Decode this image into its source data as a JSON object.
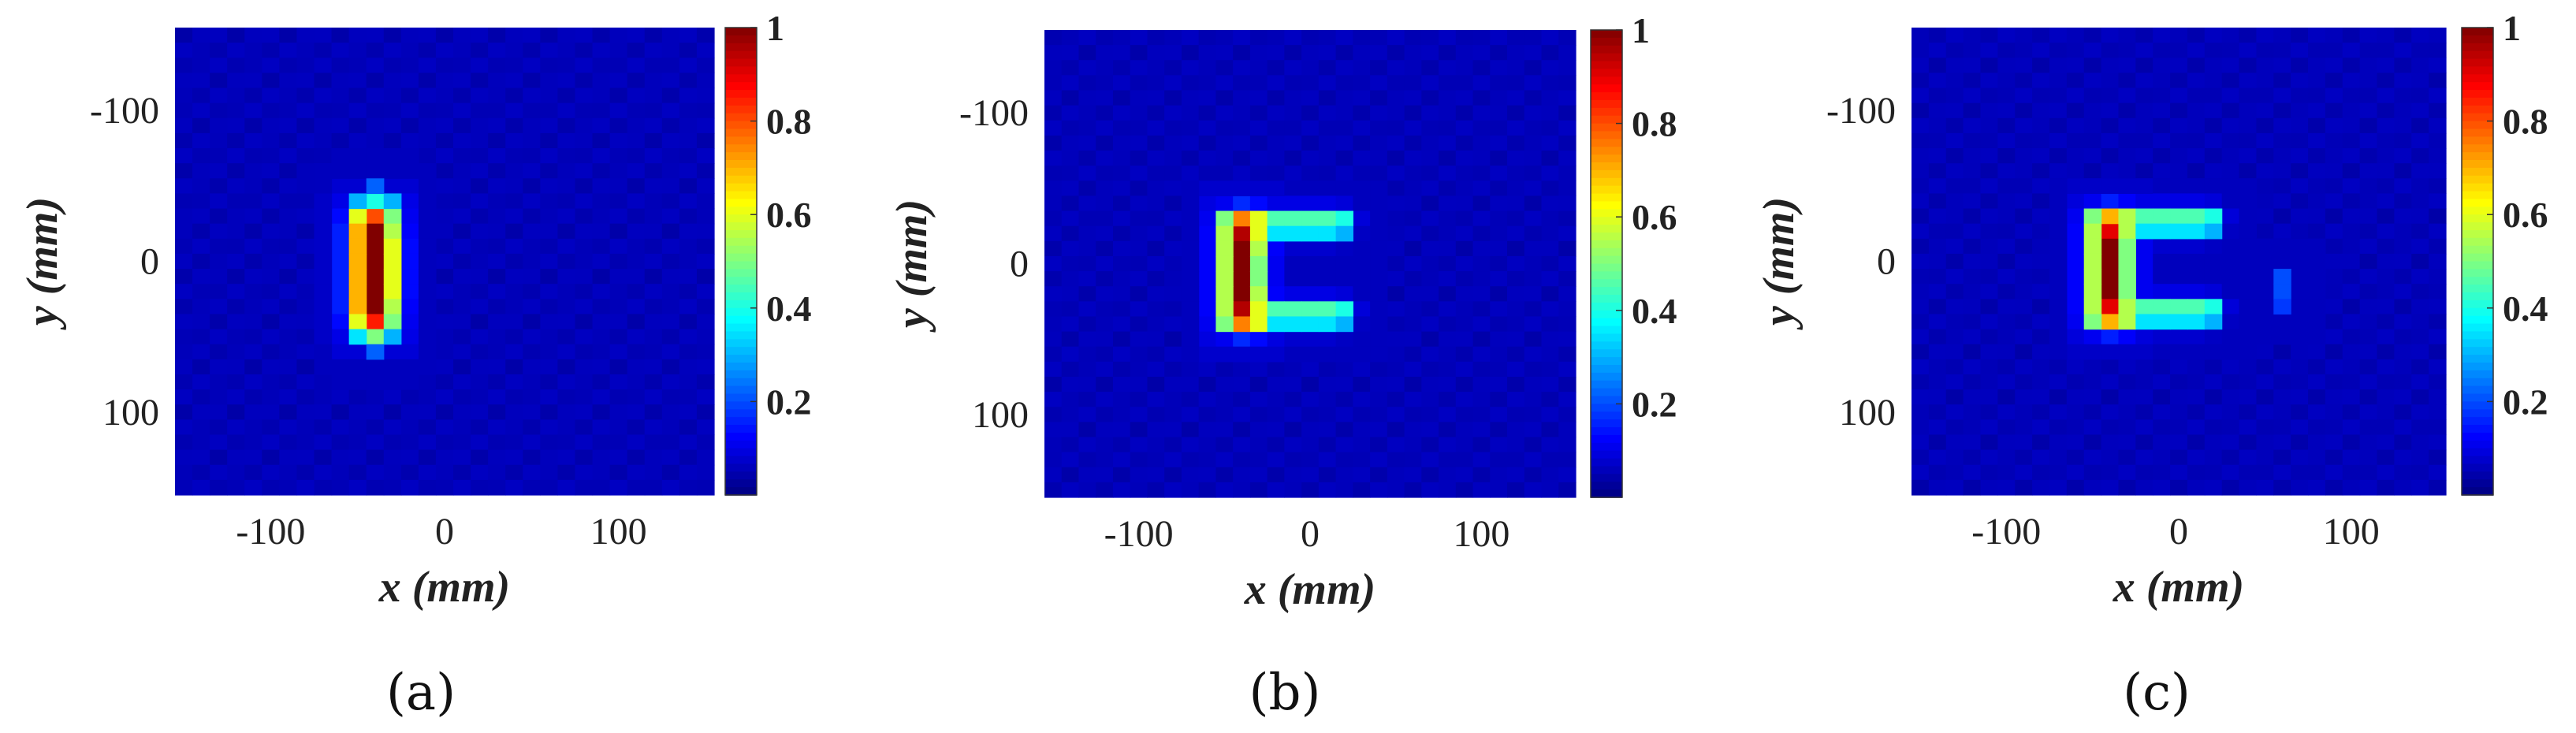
{
  "chart_data": [
    {
      "type": "heatmap",
      "panel_label": "(a)",
      "xlabel": "x (mm)",
      "ylabel": "y (mm)",
      "xlim": [
        -155,
        155
      ],
      "ylim": [
        -155,
        155
      ],
      "xticks": [
        "-100",
        "0",
        "100"
      ],
      "xtick_values": [
        -100,
        0,
        100
      ],
      "yticks": [
        "-100",
        "0",
        "100"
      ],
      "ytick_values": [
        -100,
        0,
        100
      ],
      "grid_size": [
        31,
        31
      ],
      "cell_mm": 10,
      "colormap": "jet",
      "colorbar": {
        "range": [
          0,
          1
        ],
        "ticks": [
          "0.2",
          "0.4",
          "0.6",
          "0.8",
          "1"
        ],
        "tick_values": [
          0.2,
          0.4,
          0.6,
          0.8,
          1
        ]
      },
      "shape": "vertical bar",
      "peak": 1.0,
      "bright_cells": [
        {
          "x": -40,
          "y": -30,
          "v": 0.8
        },
        {
          "x": -40,
          "y": -20,
          "v": 1.0
        },
        {
          "x": -40,
          "y": -10,
          "v": 1.0
        },
        {
          "x": -40,
          "y": 0,
          "v": 1.0
        },
        {
          "x": -40,
          "y": 10,
          "v": 1.0
        },
        {
          "x": -40,
          "y": 20,
          "v": 1.0
        },
        {
          "x": -40,
          "y": 30,
          "v": 1.0
        },
        {
          "x": -40,
          "y": 40,
          "v": 0.85
        },
        {
          "x": -50,
          "y": -30,
          "v": 0.6
        },
        {
          "x": -50,
          "y": -20,
          "v": 0.7
        },
        {
          "x": -50,
          "y": -10,
          "v": 0.7
        },
        {
          "x": -50,
          "y": 0,
          "v": 0.7
        },
        {
          "x": -50,
          "y": 10,
          "v": 0.7
        },
        {
          "x": -50,
          "y": 20,
          "v": 0.7
        },
        {
          "x": -50,
          "y": 30,
          "v": 0.7
        },
        {
          "x": -50,
          "y": 40,
          "v": 0.6
        },
        {
          "x": -30,
          "y": -30,
          "v": 0.5
        },
        {
          "x": -30,
          "y": -20,
          "v": 0.55
        },
        {
          "x": -30,
          "y": -10,
          "v": 0.6
        },
        {
          "x": -30,
          "y": 0,
          "v": 0.6
        },
        {
          "x": -30,
          "y": 10,
          "v": 0.6
        },
        {
          "x": -30,
          "y": 20,
          "v": 0.6
        },
        {
          "x": -30,
          "y": 30,
          "v": 0.55
        },
        {
          "x": -30,
          "y": 40,
          "v": 0.5
        },
        {
          "x": -40,
          "y": -40,
          "v": 0.4
        },
        {
          "x": -40,
          "y": 50,
          "v": 0.5
        },
        {
          "x": -50,
          "y": -40,
          "v": 0.3
        },
        {
          "x": -50,
          "y": 50,
          "v": 0.35
        },
        {
          "x": -30,
          "y": -40,
          "v": 0.3
        },
        {
          "x": -30,
          "y": 50,
          "v": 0.3
        },
        {
          "x": -40,
          "y": -50,
          "v": 0.22
        },
        {
          "x": -40,
          "y": 60,
          "v": 0.22
        }
      ]
    },
    {
      "type": "heatmap",
      "panel_label": "(b)",
      "xlabel": "x (mm)",
      "ylabel": "y (mm)",
      "xlim": [
        -155,
        155
      ],
      "ylim": [
        -155,
        155
      ],
      "xticks": [
        "-100",
        "0",
        "100"
      ],
      "xtick_values": [
        -100,
        0,
        100
      ],
      "yticks": [
        "-100",
        "0",
        "100"
      ],
      "ytick_values": [
        -100,
        0,
        100
      ],
      "grid_size": [
        31,
        31
      ],
      "cell_mm": 10,
      "colormap": "jet",
      "colorbar": {
        "range": [
          0,
          1
        ],
        "ticks": [
          "0.2",
          "0.4",
          "0.6",
          "0.8",
          "1"
        ],
        "tick_values": [
          0.2,
          0.4,
          0.6,
          0.8,
          1
        ]
      },
      "shape": "C-shape",
      "peak": 1.0,
      "bright_cells": [
        {
          "x": -40,
          "y": -20,
          "v": 0.95
        },
        {
          "x": -40,
          "y": -10,
          "v": 1.0
        },
        {
          "x": -40,
          "y": 0,
          "v": 1.0
        },
        {
          "x": -40,
          "y": 10,
          "v": 1.0
        },
        {
          "x": -40,
          "y": 20,
          "v": 1.0
        },
        {
          "x": -40,
          "y": 30,
          "v": 0.95
        },
        {
          "x": -40,
          "y": -30,
          "v": 0.75
        },
        {
          "x": -40,
          "y": 40,
          "v": 0.75
        },
        {
          "x": -50,
          "y": -30,
          "v": 0.5
        },
        {
          "x": -50,
          "y": -20,
          "v": 0.55
        },
        {
          "x": -50,
          "y": -10,
          "v": 0.55
        },
        {
          "x": -50,
          "y": 0,
          "v": 0.55
        },
        {
          "x": -50,
          "y": 10,
          "v": 0.55
        },
        {
          "x": -50,
          "y": 20,
          "v": 0.55
        },
        {
          "x": -50,
          "y": 30,
          "v": 0.55
        },
        {
          "x": -50,
          "y": 40,
          "v": 0.5
        },
        {
          "x": -30,
          "y": -30,
          "v": 0.6
        },
        {
          "x": -30,
          "y": -20,
          "v": 0.6
        },
        {
          "x": -30,
          "y": -10,
          "v": 0.55
        },
        {
          "x": -30,
          "y": 0,
          "v": 0.5
        },
        {
          "x": -30,
          "y": 10,
          "v": 0.5
        },
        {
          "x": -30,
          "y": 20,
          "v": 0.55
        },
        {
          "x": -30,
          "y": 30,
          "v": 0.6
        },
        {
          "x": -30,
          "y": 40,
          "v": 0.6
        },
        {
          "x": -20,
          "y": -30,
          "v": 0.45
        },
        {
          "x": -10,
          "y": -30,
          "v": 0.45
        },
        {
          "x": 0,
          "y": -30,
          "v": 0.45
        },
        {
          "x": 10,
          "y": -30,
          "v": 0.45
        },
        {
          "x": 20,
          "y": -30,
          "v": 0.4
        },
        {
          "x": -20,
          "y": -20,
          "v": 0.35
        },
        {
          "x": -10,
          "y": -20,
          "v": 0.35
        },
        {
          "x": 0,
          "y": -20,
          "v": 0.35
        },
        {
          "x": 10,
          "y": -20,
          "v": 0.35
        },
        {
          "x": 20,
          "y": -20,
          "v": 0.3
        },
        {
          "x": -20,
          "y": 30,
          "v": 0.45
        },
        {
          "x": -10,
          "y": 30,
          "v": 0.45
        },
        {
          "x": 0,
          "y": 30,
          "v": 0.45
        },
        {
          "x": 10,
          "y": 30,
          "v": 0.45
        },
        {
          "x": 20,
          "y": 30,
          "v": 0.4
        },
        {
          "x": -20,
          "y": 40,
          "v": 0.35
        },
        {
          "x": -10,
          "y": 40,
          "v": 0.35
        },
        {
          "x": 0,
          "y": 40,
          "v": 0.35
        },
        {
          "x": 10,
          "y": 40,
          "v": 0.35
        },
        {
          "x": 20,
          "y": 40,
          "v": 0.3
        }
      ]
    },
    {
      "type": "heatmap",
      "panel_label": "(c)",
      "xlabel": "x (mm)",
      "ylabel": "y (mm)",
      "xlim": [
        -155,
        155
      ],
      "ylim": [
        -155,
        155
      ],
      "xticks": [
        "-100",
        "0",
        "100"
      ],
      "xtick_values": [
        -100,
        0,
        100
      ],
      "yticks": [
        "-100",
        "0",
        "100"
      ],
      "ytick_values": [
        -100,
        0,
        100
      ],
      "grid_size": [
        31,
        31
      ],
      "cell_mm": 10,
      "colormap": "jet",
      "colorbar": {
        "range": [
          0,
          1
        ],
        "ticks": [
          "0.2",
          "0.4",
          "0.6",
          "0.8",
          "1"
        ],
        "tick_values": [
          0.2,
          0.4,
          0.6,
          0.8,
          1
        ]
      },
      "shape": "C-shape",
      "peak": 1.0,
      "bright_cells": [
        {
          "x": -40,
          "y": -20,
          "v": 0.9
        },
        {
          "x": -40,
          "y": -10,
          "v": 1.0
        },
        {
          "x": -40,
          "y": 0,
          "v": 1.0
        },
        {
          "x": -40,
          "y": 10,
          "v": 1.0
        },
        {
          "x": -40,
          "y": 20,
          "v": 1.0
        },
        {
          "x": -40,
          "y": 30,
          "v": 0.9
        },
        {
          "x": -40,
          "y": -30,
          "v": 0.7
        },
        {
          "x": -40,
          "y": 40,
          "v": 0.7
        },
        {
          "x": -50,
          "y": -30,
          "v": 0.5
        },
        {
          "x": -50,
          "y": -20,
          "v": 0.55
        },
        {
          "x": -50,
          "y": -10,
          "v": 0.55
        },
        {
          "x": -50,
          "y": 0,
          "v": 0.55
        },
        {
          "x": -50,
          "y": 10,
          "v": 0.55
        },
        {
          "x": -50,
          "y": 20,
          "v": 0.55
        },
        {
          "x": -50,
          "y": 30,
          "v": 0.55
        },
        {
          "x": -50,
          "y": 40,
          "v": 0.5
        },
        {
          "x": -30,
          "y": -30,
          "v": 0.55
        },
        {
          "x": -30,
          "y": -20,
          "v": 0.55
        },
        {
          "x": -30,
          "y": -10,
          "v": 0.5
        },
        {
          "x": -30,
          "y": 0,
          "v": 0.5
        },
        {
          "x": -30,
          "y": 10,
          "v": 0.5
        },
        {
          "x": -30,
          "y": 20,
          "v": 0.5
        },
        {
          "x": -30,
          "y": 30,
          "v": 0.55
        },
        {
          "x": -30,
          "y": 40,
          "v": 0.55
        },
        {
          "x": -20,
          "y": -30,
          "v": 0.45
        },
        {
          "x": -10,
          "y": -30,
          "v": 0.45
        },
        {
          "x": 0,
          "y": -30,
          "v": 0.45
        },
        {
          "x": 10,
          "y": -30,
          "v": 0.45
        },
        {
          "x": 20,
          "y": -30,
          "v": 0.4
        },
        {
          "x": -20,
          "y": -20,
          "v": 0.35
        },
        {
          "x": -10,
          "y": -20,
          "v": 0.35
        },
        {
          "x": 0,
          "y": -20,
          "v": 0.35
        },
        {
          "x": 10,
          "y": -20,
          "v": 0.35
        },
        {
          "x": 20,
          "y": -20,
          "v": 0.3
        },
        {
          "x": -20,
          "y": 30,
          "v": 0.45
        },
        {
          "x": -10,
          "y": 30,
          "v": 0.45
        },
        {
          "x": 0,
          "y": 30,
          "v": 0.45
        },
        {
          "x": 10,
          "y": 30,
          "v": 0.45
        },
        {
          "x": 20,
          "y": 30,
          "v": 0.4
        },
        {
          "x": -20,
          "y": 40,
          "v": 0.35
        },
        {
          "x": -10,
          "y": 40,
          "v": 0.35
        },
        {
          "x": 0,
          "y": 40,
          "v": 0.35
        },
        {
          "x": 10,
          "y": 40,
          "v": 0.35
        },
        {
          "x": 20,
          "y": 40,
          "v": 0.3
        },
        {
          "x": 60,
          "y": 10,
          "v": 0.2
        },
        {
          "x": 60,
          "y": 20,
          "v": 0.2
        },
        {
          "x": 60,
          "y": 30,
          "v": 0.18
        }
      ]
    }
  ]
}
